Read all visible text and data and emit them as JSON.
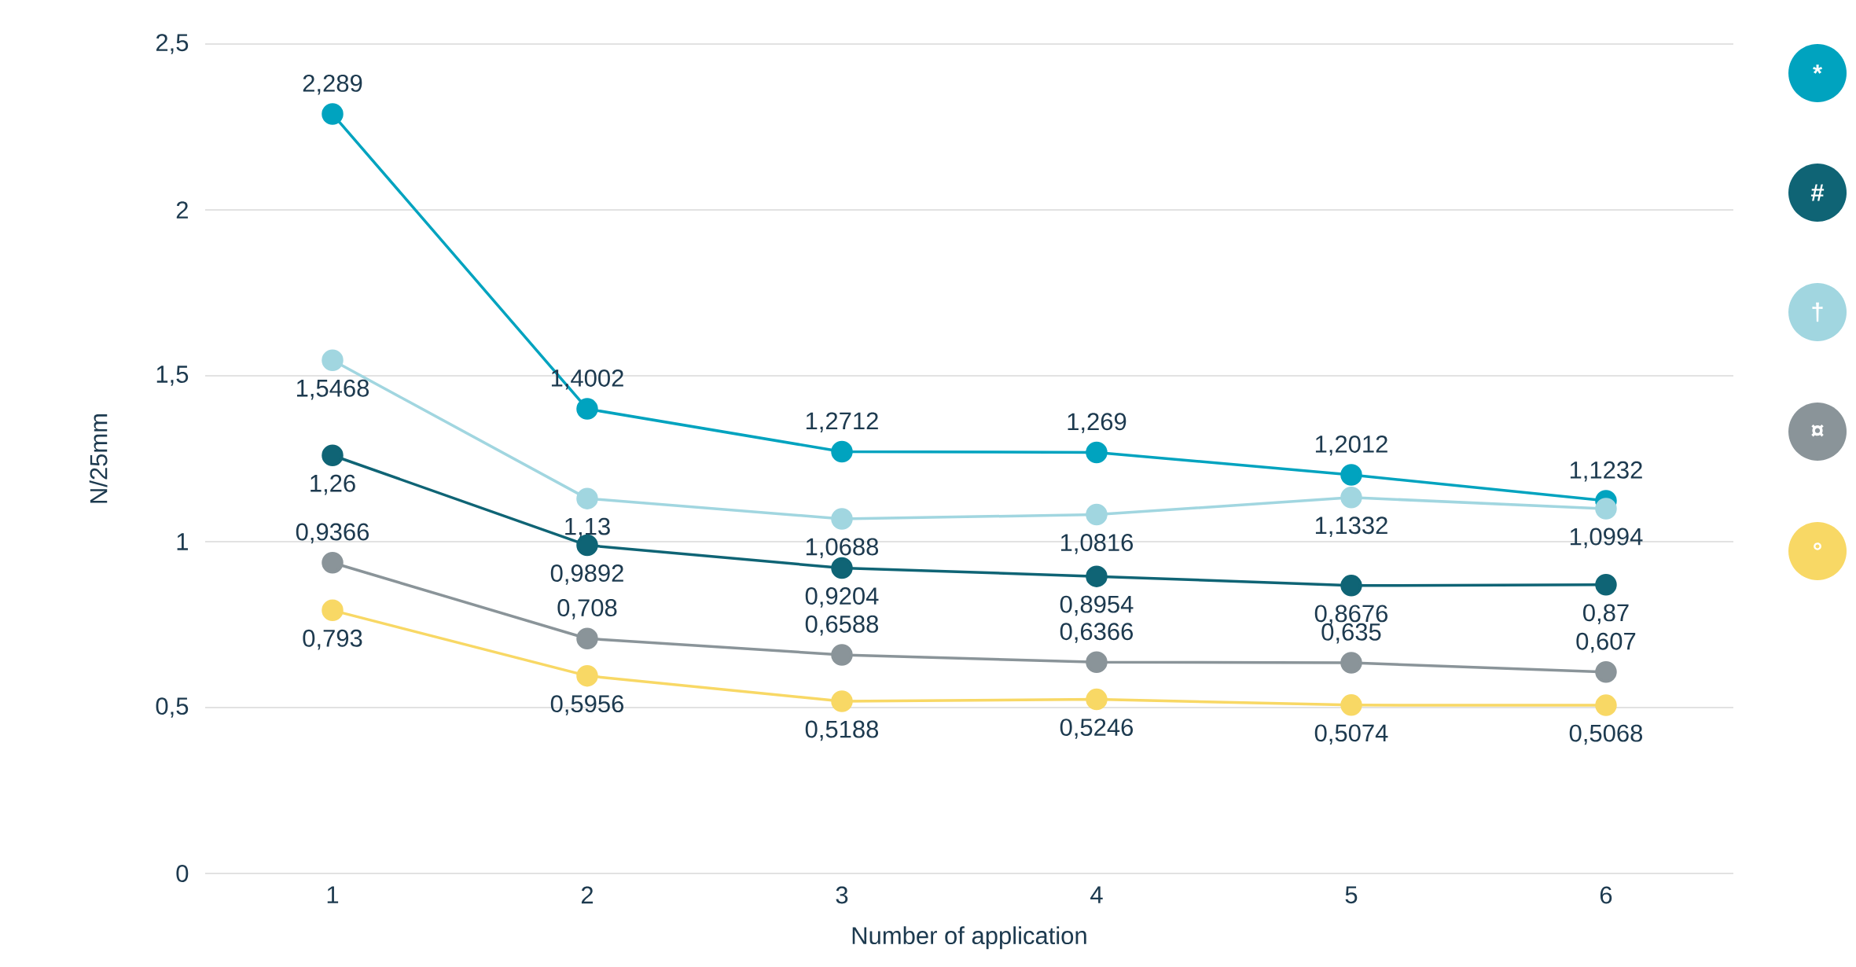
{
  "chart_data": {
    "type": "line",
    "xlabel": "Number of application",
    "ylabel": "N/25mm",
    "categories": [
      "1",
      "2",
      "3",
      "4",
      "5",
      "6"
    ],
    "series": [
      {
        "name": "*",
        "color": "#00a3bf",
        "values": [
          2.289,
          1.4002,
          1.2712,
          1.269,
          1.2012,
          1.1232
        ],
        "value_labels": [
          "2,289",
          "1,4002",
          "1,2712",
          "1,269",
          "1,2012",
          "1,1232"
        ]
      },
      {
        "name": "#",
        "color": "#0f6475",
        "values": [
          1.26,
          0.9892,
          0.9204,
          0.8954,
          0.8676,
          0.87
        ],
        "value_labels": [
          "1,26",
          "0,9892",
          "0,9204",
          "0,8954",
          "0,8676",
          "0,87"
        ]
      },
      {
        "name": "†",
        "color": "#a1d6e0",
        "values": [
          1.5468,
          1.13,
          1.0688,
          1.0816,
          1.1332,
          1.0994
        ],
        "value_labels": [
          "1,5468",
          "1,13",
          "1,0688",
          "1,0816",
          "1,1332",
          "1,0994"
        ]
      },
      {
        "name": "¤",
        "color": "#8a9499",
        "values": [
          0.9366,
          0.708,
          0.6588,
          0.6366,
          0.635,
          0.607
        ],
        "value_labels": [
          "0,9366",
          "0,708",
          "0,6588",
          "0,6366",
          "0,635",
          "0,607"
        ]
      },
      {
        "name": "°",
        "color": "#f8d865",
        "values": [
          0.793,
          0.5956,
          0.5188,
          0.5246,
          0.5074,
          0.5068
        ],
        "value_labels": [
          "0,793",
          "0,5956",
          "0,5188",
          "0,5246",
          "0,5074",
          "0,5068"
        ]
      }
    ],
    "ylim": [
      0,
      2.5
    ],
    "yticks": [
      {
        "value": 0,
        "label": "0"
      },
      {
        "value": 0.5,
        "label": "0,5"
      },
      {
        "value": 1,
        "label": "1"
      },
      {
        "value": 1.5,
        "label": "1,5"
      },
      {
        "value": 2,
        "label": "2"
      },
      {
        "value": 2.5,
        "label": "2,5"
      }
    ],
    "grid": "y",
    "legend": "right",
    "marker": "circle",
    "line_style": "solid"
  }
}
